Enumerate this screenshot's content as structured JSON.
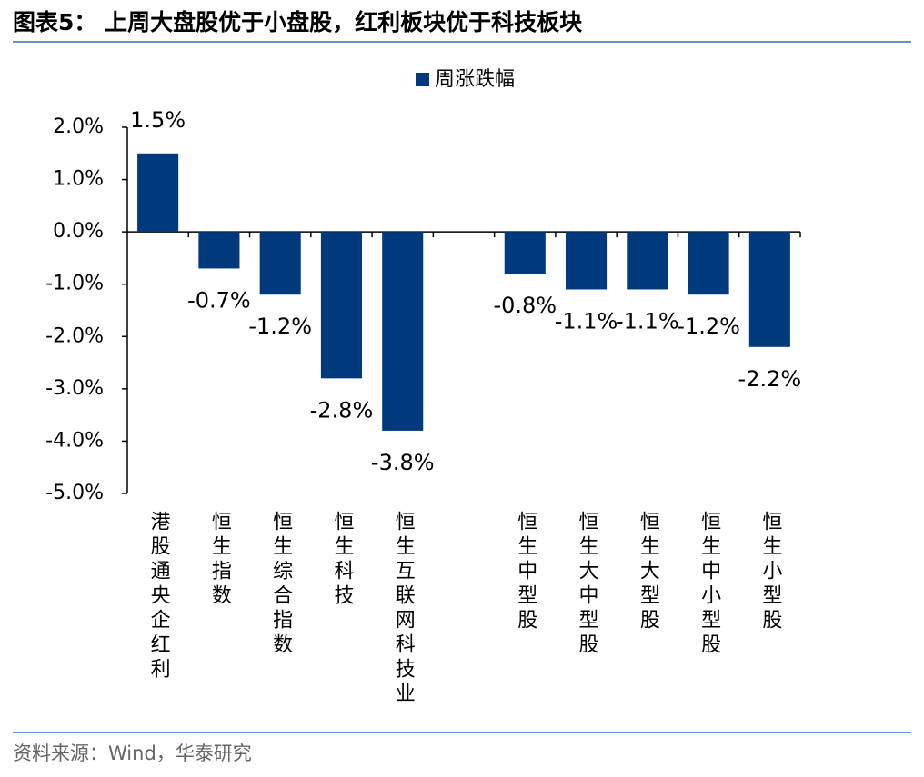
{
  "chart_data": {
    "type": "bar",
    "title": "图表5：  上周大盘股优于小盘股，红利板块优于科技板块",
    "source": "资料来源：Wind，华泰研究",
    "categories": [
      "港股通央企红利",
      "恒生指数",
      "恒生综合指数",
      "恒生科技",
      "恒生互联网科技业",
      null,
      "恒生中型股",
      "恒生大中型股",
      "恒生大型股",
      "恒生中小型股",
      "恒生小型股"
    ],
    "series": [
      {
        "name": "周涨跌幅",
        "color": "#003A7D",
        "values": [
          1.5,
          -0.7,
          -1.2,
          -2.8,
          -3.8,
          null,
          -0.8,
          -1.1,
          -1.1,
          -1.2,
          -2.2
        ],
        "value_labels": [
          "1.5%",
          "-0.7%",
          "-1.2%",
          "-2.8%",
          "-3.8%",
          null,
          "-0.8%",
          "-1.1%",
          "-1.1%",
          "-1.2%",
          "-2.2%"
        ]
      }
    ],
    "ylim": [
      -5,
      2
    ],
    "yticks": [
      {
        "value": 2,
        "label": "2.0%"
      },
      {
        "value": 1,
        "label": "1.0%"
      },
      {
        "value": 0,
        "label": "0.0%"
      },
      {
        "value": -1,
        "label": "-1.0%"
      },
      {
        "value": -2,
        "label": "-2.0%"
      },
      {
        "value": -3,
        "label": "-3.0%"
      },
      {
        "value": -4,
        "label": "-4.0%"
      },
      {
        "value": -5,
        "label": "-5.0%"
      }
    ],
    "legend": "top"
  }
}
